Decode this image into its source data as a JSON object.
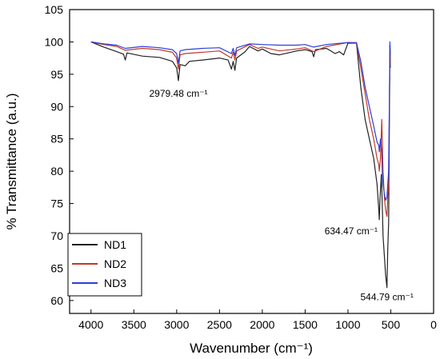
{
  "chart_data": {
    "type": "line",
    "title": "",
    "xlabel": "Wavenumber (cm⁻¹)",
    "ylabel": "% Transmittance (a.u.)",
    "xlim": [
      4250,
      0
    ],
    "ylim": [
      58,
      105
    ],
    "x_ticks": [
      4000,
      3500,
      3000,
      2500,
      2000,
      1500,
      1000,
      500,
      0
    ],
    "y_ticks": [
      60,
      65,
      70,
      75,
      80,
      85,
      90,
      95,
      100,
      105
    ],
    "grid": false,
    "legend_position": "bottom-left",
    "series": [
      {
        "name": "ND1",
        "color": "#222222",
        "points": [
          [
            4000,
            100
          ],
          [
            3850,
            99.2
          ],
          [
            3700,
            98.5
          ],
          [
            3620,
            98.1
          ],
          [
            3600,
            97.2
          ],
          [
            3580,
            98.3
          ],
          [
            3400,
            97.8
          ],
          [
            3200,
            97.6
          ],
          [
            3050,
            97.0
          ],
          [
            3000,
            96.0
          ],
          [
            2980,
            94.0
          ],
          [
            2960,
            96.5
          ],
          [
            2900,
            96.3
          ],
          [
            2850,
            97.0
          ],
          [
            2700,
            97.2
          ],
          [
            2500,
            97.5
          ],
          [
            2400,
            97.2
          ],
          [
            2360,
            95.8
          ],
          [
            2340,
            97.0
          ],
          [
            2320,
            95.6
          ],
          [
            2300,
            97.5
          ],
          [
            2200,
            98.5
          ],
          [
            2150,
            99.3
          ],
          [
            2050,
            98.6
          ],
          [
            2000,
            98.9
          ],
          [
            1900,
            98.2
          ],
          [
            1800,
            98.0
          ],
          [
            1700,
            98.3
          ],
          [
            1600,
            98.6
          ],
          [
            1500,
            98.8
          ],
          [
            1420,
            98.5
          ],
          [
            1400,
            97.7
          ],
          [
            1380,
            98.8
          ],
          [
            1250,
            99.0
          ],
          [
            1150,
            98.2
          ],
          [
            1100,
            98.5
          ],
          [
            1050,
            98.0
          ],
          [
            1000,
            99.8
          ],
          [
            900,
            99.8
          ],
          [
            850,
            93
          ],
          [
            800,
            88
          ],
          [
            750,
            85
          ],
          [
            700,
            82
          ],
          [
            660,
            78
          ],
          [
            640,
            74
          ],
          [
            634,
            72.5
          ],
          [
            625,
            76
          ],
          [
            610,
            79.5
          ],
          [
            600,
            75
          ],
          [
            590,
            70
          ],
          [
            575,
            67
          ],
          [
            560,
            64
          ],
          [
            545,
            62
          ],
          [
            535,
            68
          ],
          [
            525,
            72
          ],
          [
            515,
            90
          ],
          [
            510,
            99.5
          ],
          [
            505,
            96
          ]
        ]
      },
      {
        "name": "ND2",
        "color": "#c0392b",
        "points": [
          [
            4000,
            100
          ],
          [
            3850,
            99.6
          ],
          [
            3700,
            99.3
          ],
          [
            3600,
            98.7
          ],
          [
            3400,
            99.0
          ],
          [
            3200,
            98.8
          ],
          [
            3050,
            98.4
          ],
          [
            3000,
            97.5
          ],
          [
            2980,
            95.8
          ],
          [
            2960,
            98.0
          ],
          [
            2900,
            98.2
          ],
          [
            2700,
            98.4
          ],
          [
            2500,
            98.6
          ],
          [
            2360,
            97.5
          ],
          [
            2340,
            98.4
          ],
          [
            2320,
            97.2
          ],
          [
            2300,
            98.6
          ],
          [
            2150,
            99.6
          ],
          [
            2050,
            99.0
          ],
          [
            2000,
            99.2
          ],
          [
            1800,
            98.6
          ],
          [
            1600,
            98.9
          ],
          [
            1500,
            99.1
          ],
          [
            1400,
            98.5
          ],
          [
            1250,
            99.3
          ],
          [
            1000,
            99.9
          ],
          [
            900,
            99.8
          ],
          [
            850,
            96
          ],
          [
            800,
            92
          ],
          [
            750,
            88
          ],
          [
            700,
            85
          ],
          [
            660,
            82
          ],
          [
            640,
            81
          ],
          [
            634,
            80
          ],
          [
            620,
            82
          ],
          [
            605,
            88
          ],
          [
            600,
            85
          ],
          [
            590,
            80
          ],
          [
            575,
            76
          ],
          [
            560,
            74
          ],
          [
            545,
            73
          ],
          [
            535,
            76
          ],
          [
            525,
            78
          ],
          [
            515,
            92
          ],
          [
            510,
            99.5
          ],
          [
            505,
            97
          ]
        ]
      },
      {
        "name": "ND3",
        "color": "#2c3ed6",
        "points": [
          [
            4000,
            100
          ],
          [
            3850,
            99.7
          ],
          [
            3700,
            99.5
          ],
          [
            3600,
            99.0
          ],
          [
            3400,
            99.3
          ],
          [
            3200,
            99.1
          ],
          [
            3050,
            98.8
          ],
          [
            3000,
            98.2
          ],
          [
            2980,
            96.7
          ],
          [
            2960,
            98.6
          ],
          [
            2900,
            98.8
          ],
          [
            2700,
            99.0
          ],
          [
            2500,
            99.1
          ],
          [
            2360,
            98.2
          ],
          [
            2340,
            99.0
          ],
          [
            2320,
            97.9
          ],
          [
            2300,
            99.1
          ],
          [
            2150,
            99.7
          ],
          [
            2000,
            99.6
          ],
          [
            1800,
            99.5
          ],
          [
            1600,
            99.5
          ],
          [
            1500,
            99.6
          ],
          [
            1400,
            99.2
          ],
          [
            1250,
            99.6
          ],
          [
            1000,
            99.9
          ],
          [
            900,
            99.9
          ],
          [
            850,
            97
          ],
          [
            800,
            93
          ],
          [
            750,
            90
          ],
          [
            700,
            87
          ],
          [
            660,
            84.5
          ],
          [
            640,
            84
          ],
          [
            634,
            83
          ],
          [
            620,
            85
          ],
          [
            605,
            83
          ],
          [
            600,
            80
          ],
          [
            590,
            78
          ],
          [
            575,
            76.5
          ],
          [
            560,
            75.5
          ],
          [
            545,
            76
          ],
          [
            535,
            78
          ],
          [
            525,
            80
          ],
          [
            515,
            93
          ],
          [
            510,
            100
          ],
          [
            505,
            98
          ]
        ]
      }
    ],
    "annotations": [
      {
        "text": "2979.48 cm⁻¹",
        "x": 2979.48,
        "y": 94.0
      },
      {
        "text": "634.47 cm⁻¹",
        "x": 634.47,
        "y": 72.5
      },
      {
        "text": "544.79 cm⁻¹",
        "x": 544.79,
        "y": 62.0
      }
    ]
  }
}
